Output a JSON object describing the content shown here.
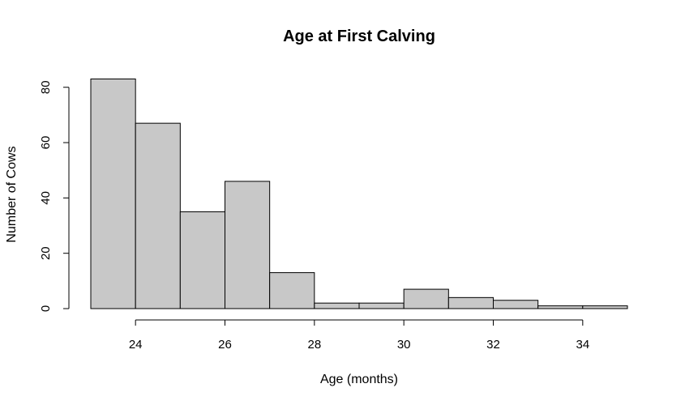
{
  "chart_data": {
    "type": "bar",
    "title": "Age at First Calving",
    "xlabel": "Age (months)",
    "ylabel": "Number of Cows",
    "bin_edges": [
      23,
      24,
      25,
      26,
      27,
      28,
      29,
      30,
      31,
      32,
      33,
      34,
      35
    ],
    "values": [
      83,
      67,
      35,
      46,
      13,
      2,
      2,
      7,
      4,
      3,
      1,
      1
    ],
    "xlim": [
      23,
      35
    ],
    "ylim": [
      0,
      83
    ],
    "x_ticks": [
      24,
      26,
      28,
      30,
      32,
      34
    ],
    "y_ticks": [
      0,
      20,
      40,
      60,
      80
    ],
    "bar_color": "#c8c8c8",
    "edge_color": "#000000",
    "grid": false,
    "legend": "none"
  }
}
